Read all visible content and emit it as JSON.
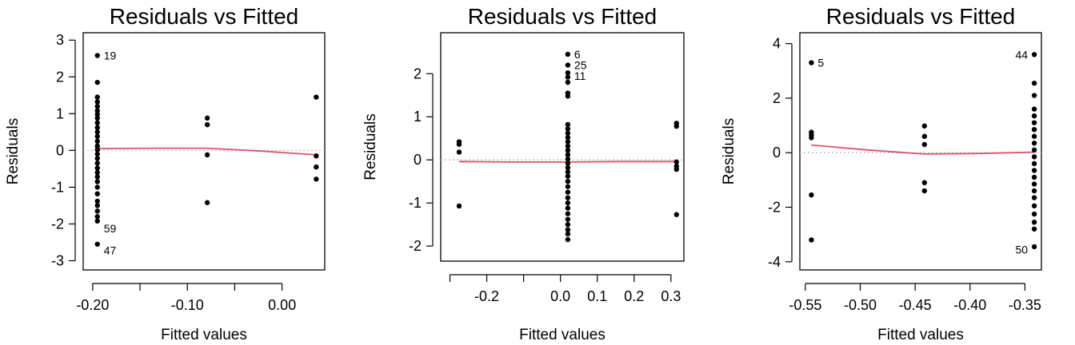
{
  "chart_data": [
    {
      "type": "scatter",
      "title": "Residuals vs Fitted",
      "xlabel": "Fitted values",
      "ylabel": "Residuals",
      "xlim": [
        -0.21,
        0.045
      ],
      "ylim": [
        -3.25,
        3.2
      ],
      "xticks": [
        -0.2,
        -0.15,
        -0.1,
        -0.05,
        0.0
      ],
      "xtick_labels": [
        "-0.20",
        "",
        "-0.10",
        "",
        "0.00"
      ],
      "yticks": [
        -3,
        -2,
        -1,
        0,
        1,
        2,
        3
      ],
      "ytick_labels": [
        "-3",
        "-2",
        "-1",
        "0",
        "1",
        "2",
        "3"
      ],
      "zero_line": true,
      "smoother_color": "#DF536B",
      "refline_color": "#BEBEBE",
      "points": [
        {
          "x": -0.195,
          "y": 2.58
        },
        {
          "x": -0.195,
          "y": 1.85
        },
        {
          "x": -0.195,
          "y": 1.45
        },
        {
          "x": -0.195,
          "y": 1.32
        },
        {
          "x": -0.195,
          "y": 1.2
        },
        {
          "x": -0.195,
          "y": 1.08
        },
        {
          "x": -0.195,
          "y": 0.98
        },
        {
          "x": -0.195,
          "y": 0.88
        },
        {
          "x": -0.195,
          "y": 0.75
        },
        {
          "x": -0.195,
          "y": 0.62
        },
        {
          "x": -0.195,
          "y": 0.5
        },
        {
          "x": -0.195,
          "y": 0.38
        },
        {
          "x": -0.195,
          "y": 0.25
        },
        {
          "x": -0.195,
          "y": 0.12
        },
        {
          "x": -0.195,
          "y": 0.02
        },
        {
          "x": -0.195,
          "y": -0.1
        },
        {
          "x": -0.195,
          "y": -0.22
        },
        {
          "x": -0.195,
          "y": -0.35
        },
        {
          "x": -0.195,
          "y": -0.48
        },
        {
          "x": -0.195,
          "y": -0.6
        },
        {
          "x": -0.195,
          "y": -0.72
        },
        {
          "x": -0.195,
          "y": -0.85
        },
        {
          "x": -0.195,
          "y": -1.0
        },
        {
          "x": -0.195,
          "y": -1.18
        },
        {
          "x": -0.195,
          "y": -1.38
        },
        {
          "x": -0.195,
          "y": -1.5
        },
        {
          "x": -0.195,
          "y": -1.65
        },
        {
          "x": -0.195,
          "y": -1.8
        },
        {
          "x": -0.195,
          "y": -1.92
        },
        {
          "x": -0.195,
          "y": -2.55
        },
        {
          "x": -0.079,
          "y": 0.88
        },
        {
          "x": -0.079,
          "y": 0.7
        },
        {
          "x": -0.079,
          "y": -0.12
        },
        {
          "x": -0.079,
          "y": -1.42
        },
        {
          "x": 0.036,
          "y": 1.45
        },
        {
          "x": 0.036,
          "y": -0.15
        },
        {
          "x": 0.036,
          "y": -0.45
        },
        {
          "x": 0.036,
          "y": -0.78
        }
      ],
      "smoother": [
        {
          "x": -0.195,
          "y": 0.05
        },
        {
          "x": -0.137,
          "y": 0.06
        },
        {
          "x": -0.079,
          "y": 0.06
        },
        {
          "x": -0.02,
          "y": -0.02
        },
        {
          "x": 0.036,
          "y": -0.12
        }
      ],
      "point_labels": [
        {
          "text": "19",
          "x": -0.195,
          "y": 2.58
        },
        {
          "text": "59",
          "x": -0.195,
          "y": -2.12
        },
        {
          "text": "47",
          "x": -0.195,
          "y": -2.72
        }
      ]
    },
    {
      "type": "scatter",
      "title": "Residuals vs Fitted",
      "xlabel": "Fitted values",
      "ylabel": "Residuals",
      "xlim": [
        -0.325,
        0.335
      ],
      "ylim": [
        -2.35,
        2.95
      ],
      "xticks": [
        -0.3,
        -0.2,
        -0.1,
        0.0,
        0.1,
        0.2,
        0.3
      ],
      "xtick_labels": [
        "",
        "-0.2",
        "",
        "0.0",
        "0.1",
        "0.2",
        "0.3"
      ],
      "yticks": [
        -2,
        -1,
        0,
        1,
        2
      ],
      "ytick_labels": [
        "-2",
        "-1",
        "0",
        "1",
        "2"
      ],
      "zero_line": true,
      "smoother_color": "#DF536B",
      "refline_color": "#BEBEBE",
      "points": [
        {
          "x": -0.275,
          "y": 0.42
        },
        {
          "x": -0.275,
          "y": 0.36
        },
        {
          "x": -0.275,
          "y": 0.18
        },
        {
          "x": -0.275,
          "y": -1.07
        },
        {
          "x": 0.02,
          "y": 2.45
        },
        {
          "x": 0.02,
          "y": 2.2
        },
        {
          "x": 0.02,
          "y": 2.02
        },
        {
          "x": 0.02,
          "y": 1.92
        },
        {
          "x": 0.02,
          "y": 1.8
        },
        {
          "x": 0.02,
          "y": 1.55
        },
        {
          "x": 0.02,
          "y": 1.48
        },
        {
          "x": 0.02,
          "y": 0.82
        },
        {
          "x": 0.02,
          "y": 0.72
        },
        {
          "x": 0.02,
          "y": 0.62
        },
        {
          "x": 0.02,
          "y": 0.52
        },
        {
          "x": 0.02,
          "y": 0.42
        },
        {
          "x": 0.02,
          "y": 0.32
        },
        {
          "x": 0.02,
          "y": 0.22
        },
        {
          "x": 0.02,
          "y": 0.12
        },
        {
          "x": 0.02,
          "y": 0.02
        },
        {
          "x": 0.02,
          "y": -0.08
        },
        {
          "x": 0.02,
          "y": -0.18
        },
        {
          "x": 0.02,
          "y": -0.28
        },
        {
          "x": 0.02,
          "y": -0.38
        },
        {
          "x": 0.02,
          "y": -0.5
        },
        {
          "x": 0.02,
          "y": -0.62
        },
        {
          "x": 0.02,
          "y": -0.75
        },
        {
          "x": 0.02,
          "y": -0.88
        },
        {
          "x": 0.02,
          "y": -1.0
        },
        {
          "x": 0.02,
          "y": -1.12
        },
        {
          "x": 0.02,
          "y": -1.25
        },
        {
          "x": 0.02,
          "y": -1.38
        },
        {
          "x": 0.02,
          "y": -1.5
        },
        {
          "x": 0.02,
          "y": -1.62
        },
        {
          "x": 0.02,
          "y": -1.72
        },
        {
          "x": 0.02,
          "y": -1.85
        },
        {
          "x": 0.315,
          "y": 0.85
        },
        {
          "x": 0.315,
          "y": 0.78
        },
        {
          "x": 0.315,
          "y": -0.05
        },
        {
          "x": 0.315,
          "y": -0.15
        },
        {
          "x": 0.315,
          "y": -0.22
        },
        {
          "x": 0.315,
          "y": -1.27
        }
      ],
      "smoother": [
        {
          "x": -0.275,
          "y": -0.04
        },
        {
          "x": -0.127,
          "y": -0.05
        },
        {
          "x": 0.02,
          "y": -0.05
        },
        {
          "x": 0.168,
          "y": -0.04
        },
        {
          "x": 0.315,
          "y": -0.04
        }
      ],
      "point_labels": [
        {
          "text": "6",
          "x": 0.02,
          "y": 2.45
        },
        {
          "text": "25",
          "x": 0.02,
          "y": 2.2
        },
        {
          "text": "11",
          "x": 0.02,
          "y": 1.95
        }
      ]
    },
    {
      "type": "scatter",
      "title": "Residuals vs Fitted",
      "xlabel": "Fitted values",
      "ylabel": "Residuals",
      "xlim": [
        -0.555,
        -0.335
      ],
      "ylim": [
        -4.3,
        4.4
      ],
      "xticks": [
        -0.55,
        -0.5,
        -0.45,
        -0.4,
        -0.35
      ],
      "xtick_labels": [
        "-0.55",
        "-0.50",
        "-0.45",
        "-0.40",
        "-0.35"
      ],
      "yticks": [
        -4,
        -2,
        0,
        2,
        4
      ],
      "ytick_labels": [
        "-4",
        "-2",
        "0",
        "2",
        "4"
      ],
      "zero_line": true,
      "smoother_color": "#DF536B",
      "refline_color": "#BEBEBE",
      "points": [
        {
          "x": -0.5445,
          "y": 3.3
        },
        {
          "x": -0.5445,
          "y": 0.75
        },
        {
          "x": -0.5445,
          "y": 0.65
        },
        {
          "x": -0.5445,
          "y": 0.55
        },
        {
          "x": -0.5445,
          "y": -1.55
        },
        {
          "x": -0.5445,
          "y": -3.2
        },
        {
          "x": -0.4415,
          "y": 0.98
        },
        {
          "x": -0.4415,
          "y": 0.6
        },
        {
          "x": -0.4415,
          "y": 0.3
        },
        {
          "x": -0.4415,
          "y": -1.1
        },
        {
          "x": -0.4415,
          "y": -1.4
        },
        {
          "x": -0.3415,
          "y": 3.6
        },
        {
          "x": -0.3415,
          "y": 2.55
        },
        {
          "x": -0.3415,
          "y": 2.1
        },
        {
          "x": -0.3415,
          "y": 1.6
        },
        {
          "x": -0.3415,
          "y": 1.35
        },
        {
          "x": -0.3415,
          "y": 1.1
        },
        {
          "x": -0.3415,
          "y": 0.85
        },
        {
          "x": -0.3415,
          "y": 0.6
        },
        {
          "x": -0.3415,
          "y": 0.35
        },
        {
          "x": -0.3415,
          "y": 0.1
        },
        {
          "x": -0.3415,
          "y": -0.15
        },
        {
          "x": -0.3415,
          "y": -0.4
        },
        {
          "x": -0.3415,
          "y": -0.65
        },
        {
          "x": -0.3415,
          "y": -0.9
        },
        {
          "x": -0.3415,
          "y": -1.15
        },
        {
          "x": -0.3415,
          "y": -1.4
        },
        {
          "x": -0.3415,
          "y": -1.65
        },
        {
          "x": -0.3415,
          "y": -1.95
        },
        {
          "x": -0.3415,
          "y": -2.25
        },
        {
          "x": -0.3415,
          "y": -2.55
        },
        {
          "x": -0.3415,
          "y": -2.8
        },
        {
          "x": -0.3415,
          "y": -3.45
        }
      ],
      "smoother": [
        {
          "x": -0.5445,
          "y": 0.28
        },
        {
          "x": -0.493,
          "y": 0.1
        },
        {
          "x": -0.4415,
          "y": -0.05
        },
        {
          "x": -0.3915,
          "y": -0.03
        },
        {
          "x": -0.3415,
          "y": 0.02
        }
      ],
      "point_labels": [
        {
          "text": "5",
          "x": -0.5445,
          "y": 3.3
        },
        {
          "text": "44",
          "x": -0.3415,
          "y": 3.6
        },
        {
          "text": "50",
          "x": -0.3415,
          "y": -3.55
        }
      ]
    }
  ]
}
